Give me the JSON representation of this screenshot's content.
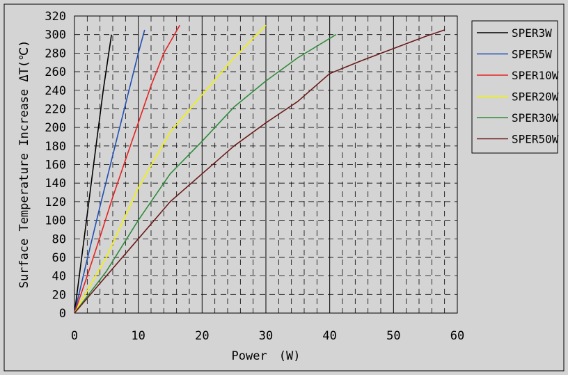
{
  "chart_data": {
    "type": "line",
    "title": "",
    "xlabel": "Power　(W)",
    "ylabel": "Surface Temperature Increase ΔT(℃)",
    "xlim": [
      0,
      60
    ],
    "ylim": [
      0,
      320
    ],
    "xticks": [
      0,
      10,
      20,
      30,
      40,
      50,
      60
    ],
    "yticks": [
      0,
      20,
      40,
      60,
      80,
      100,
      120,
      140,
      160,
      180,
      200,
      220,
      240,
      260,
      280,
      300,
      320
    ],
    "grid": true,
    "minor_grid_style": "dashed",
    "legend_position": "right",
    "series": [
      {
        "name": "SPER3W",
        "color": "#000000",
        "points": [
          [
            0,
            0
          ],
          [
            1.5,
            80
          ],
          [
            3,
            160
          ],
          [
            4.5,
            240
          ],
          [
            5.8,
            300
          ]
        ]
      },
      {
        "name": "SPER5W",
        "color": "#1f4fb4",
        "points": [
          [
            0,
            0
          ],
          [
            2,
            58
          ],
          [
            4,
            115
          ],
          [
            6,
            170
          ],
          [
            8,
            225
          ],
          [
            10,
            280
          ],
          [
            11,
            305
          ]
        ]
      },
      {
        "name": "SPER10W",
        "color": "#e82020",
        "points": [
          [
            0,
            0
          ],
          [
            2,
            40
          ],
          [
            4,
            82
          ],
          [
            6,
            125
          ],
          [
            8,
            165
          ],
          [
            10,
            205
          ],
          [
            12,
            245
          ],
          [
            14,
            280
          ],
          [
            16.5,
            310
          ]
        ]
      },
      {
        "name": "SPER20W",
        "color": "#f4f400",
        "points": [
          [
            0,
            0
          ],
          [
            5,
            60
          ],
          [
            10,
            135
          ],
          [
            15,
            195
          ],
          [
            20,
            235
          ],
          [
            25,
            275
          ],
          [
            30,
            310
          ]
        ]
      },
      {
        "name": "SPER30W",
        "color": "#2e8b3a",
        "points": [
          [
            0,
            0
          ],
          [
            5,
            45
          ],
          [
            10,
            100
          ],
          [
            15,
            150
          ],
          [
            20,
            185
          ],
          [
            25,
            222
          ],
          [
            30,
            250
          ],
          [
            35,
            275
          ],
          [
            41,
            300
          ]
        ]
      },
      {
        "name": "SPER50W",
        "color": "#6b1a1a",
        "points": [
          [
            0,
            0
          ],
          [
            5,
            40
          ],
          [
            10,
            80
          ],
          [
            15,
            120
          ],
          [
            20,
            150
          ],
          [
            25,
            180
          ],
          [
            30,
            205
          ],
          [
            35,
            228
          ],
          [
            40,
            258
          ],
          [
            45,
            272
          ],
          [
            50,
            285
          ],
          [
            55,
            298
          ],
          [
            58,
            305
          ]
        ]
      }
    ]
  }
}
